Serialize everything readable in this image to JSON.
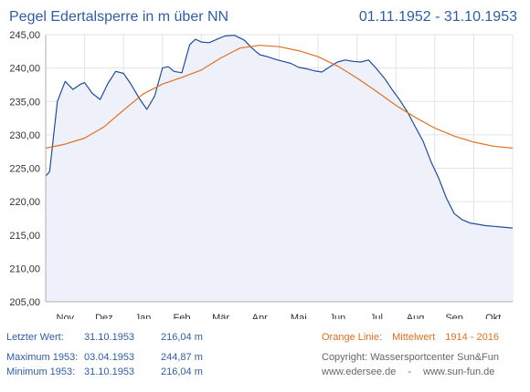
{
  "header": {
    "title": "Pegel Edertalsperre in m über NN",
    "period": "01.11.1952 - 31.10.1953"
  },
  "stats": {
    "last": {
      "label": "Letzter Wert:",
      "date": "31.10.1953",
      "value": "216,04 m"
    },
    "max": {
      "label": "Maximum 1953:",
      "date": "03.04.1953",
      "value": "244,87 m"
    },
    "min": {
      "label": "Minimum  1953:",
      "date": "31.10.1953",
      "value": "216,04 m"
    }
  },
  "legend": {
    "orange_label": "Orange Linie:",
    "mean_label": "Mittelwert",
    "mean_range": "1914 - 2016"
  },
  "footer": {
    "copyright": "Copyright: Wassersportcenter Sun&Fun",
    "site1": "www.edersee.de",
    "separator": "-",
    "site2": "www.sun-fun.de"
  },
  "colors": {
    "level_line": "#1f4e9c",
    "mean_line": "#e07020",
    "area_fill": "#eef1fa",
    "grid": "#e3e3e3",
    "text_blue": "#2e5da6"
  },
  "chart_data": {
    "type": "line",
    "x": [
      "Nov",
      "Dez",
      "Jan",
      "Feb",
      "Mär",
      "Apr",
      "Mai",
      "Jun",
      "Jul",
      "Aug",
      "Sep",
      "Okt"
    ],
    "xlabel": "",
    "ylabel": "",
    "ylim": [
      205,
      245
    ],
    "yticks": [
      "205,00",
      "210,00",
      "215,00",
      "220,00",
      "225,00",
      "230,00",
      "235,00",
      "240,00",
      "245,00"
    ],
    "grid": true,
    "series": [
      {
        "color": "#1f4e9c",
        "fill_area": true,
        "x": [
          0,
          0.1,
          0.3,
          0.5,
          0.7,
          0.9,
          1.0,
          1.2,
          1.4,
          1.6,
          1.8,
          2.0,
          2.2,
          2.4,
          2.6,
          2.8,
          3.0,
          3.15,
          3.3,
          3.5,
          3.7,
          3.85,
          4.0,
          4.2,
          4.4,
          4.6,
          4.85,
          5.1,
          5.3,
          5.5,
          5.7,
          5.9,
          6.1,
          6.3,
          6.5,
          6.7,
          6.9,
          7.1,
          7.3,
          7.5,
          7.7,
          7.9,
          8.1,
          8.3,
          8.5,
          8.7,
          8.9,
          9.1,
          9.3,
          9.5,
          9.7,
          9.9,
          10.1,
          10.3,
          10.5,
          10.7,
          10.9,
          11.1,
          11.3,
          11.5,
          11.7,
          12.0
        ],
        "values": [
          223.8,
          224.5,
          235,
          238,
          236.8,
          237.6,
          237.8,
          236.2,
          235.3,
          237.7,
          239.5,
          239.2,
          237.5,
          235.5,
          233.8,
          235.8,
          240,
          240.2,
          239.5,
          239.3,
          243.5,
          244.3,
          243.9,
          243.8,
          244.3,
          244.8,
          244.9,
          244.2,
          243,
          242,
          241.7,
          241.3,
          241,
          240.7,
          240.1,
          239.9,
          239.6,
          239.4,
          240.2,
          240.9,
          241.2,
          241,
          240.9,
          241.2,
          239.9,
          238.5,
          236.8,
          235.2,
          233.4,
          231.2,
          229,
          226,
          223.5,
          220.5,
          218.2,
          217.3,
          216.8,
          216.6,
          216.4,
          216.3,
          216.2,
          216.04
        ]
      },
      {
        "color": "#e07020",
        "fill_area": false,
        "x": [
          0,
          0.5,
          1.0,
          1.5,
          2.0,
          2.5,
          3.0,
          3.5,
          4.0,
          4.5,
          5.0,
          5.5,
          6.0,
          6.5,
          7.0,
          7.5,
          8.0,
          8.5,
          9.0,
          9.5,
          10.0,
          10.5,
          11.0,
          11.5,
          12.0
        ],
        "values": [
          228,
          228.6,
          229.5,
          231.2,
          233.7,
          236.1,
          237.6,
          238.6,
          239.7,
          241.5,
          243,
          243.4,
          243.2,
          242.6,
          241.7,
          240.3,
          238.5,
          236.5,
          234.4,
          232.6,
          231,
          229.8,
          228.9,
          228.3,
          228
        ]
      }
    ]
  }
}
